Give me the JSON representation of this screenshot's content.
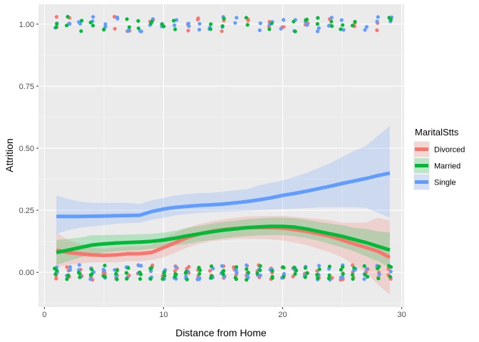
{
  "chart_data": {
    "type": "scatter",
    "xlabel": "Distance from Home",
    "ylabel": "Attrition",
    "xlim": [
      -0.5,
      30.2
    ],
    "ylim": [
      -0.14,
      1.08
    ],
    "x_ticks": [
      0,
      10,
      20,
      30
    ],
    "y_ticks": [
      0.0,
      0.25,
      0.5,
      0.75,
      1.0
    ],
    "y_tick_labels": [
      "0.00",
      "0.25",
      "0.50",
      "0.75",
      "1.00"
    ],
    "grid": true,
    "legend": {
      "title": "MaritalStts",
      "position": "right"
    },
    "series": [
      {
        "name": "Divorced",
        "color": "#F8766D",
        "smooth": {
          "x": [
            1,
            2,
            3,
            4,
            5,
            6,
            7,
            8,
            9,
            10,
            11,
            12,
            13,
            14,
            15,
            16,
            17,
            18,
            19,
            20,
            21,
            22,
            23,
            24,
            25,
            26,
            27,
            28,
            29
          ],
          "y": [
            0.09,
            0.08,
            0.075,
            0.07,
            0.068,
            0.07,
            0.075,
            0.075,
            0.08,
            0.1,
            0.12,
            0.14,
            0.155,
            0.165,
            0.172,
            0.177,
            0.18,
            0.181,
            0.18,
            0.178,
            0.172,
            0.165,
            0.155,
            0.145,
            0.13,
            0.115,
            0.1,
            0.085,
            0.06
          ],
          "lower": [
            0.02,
            0.03,
            0.035,
            0.04,
            0.04,
            0.04,
            0.045,
            0.045,
            0.05,
            0.06,
            0.08,
            0.1,
            0.115,
            0.125,
            0.13,
            0.135,
            0.135,
            0.135,
            0.133,
            0.128,
            0.12,
            0.11,
            0.095,
            0.08,
            0.06,
            0.03,
            0.0,
            -0.05,
            -0.09
          ],
          "upper": [
            0.16,
            0.13,
            0.115,
            0.1,
            0.095,
            0.1,
            0.105,
            0.105,
            0.11,
            0.14,
            0.16,
            0.18,
            0.195,
            0.205,
            0.214,
            0.219,
            0.225,
            0.227,
            0.227,
            0.228,
            0.224,
            0.22,
            0.215,
            0.21,
            0.2,
            0.2,
            0.2,
            0.22,
            0.21
          ]
        },
        "points_at_1": [
          1,
          2,
          6,
          7,
          9,
          12,
          13,
          15,
          17,
          19,
          20,
          22,
          24,
          26,
          28
        ],
        "points_at_0": [
          1,
          2,
          3,
          4,
          5,
          6,
          7,
          8,
          9,
          10,
          11,
          12,
          13,
          14,
          15,
          16,
          17,
          18,
          19,
          20,
          21,
          22,
          23,
          24,
          25,
          26,
          27,
          28,
          29
        ]
      },
      {
        "name": "Married",
        "color": "#00BA38",
        "smooth": {
          "x": [
            1,
            2,
            3,
            4,
            5,
            6,
            7,
            8,
            9,
            10,
            11,
            12,
            13,
            14,
            15,
            16,
            17,
            18,
            19,
            20,
            21,
            22,
            23,
            24,
            25,
            26,
            27,
            28,
            29
          ],
          "y": [
            0.08,
            0.09,
            0.1,
            0.11,
            0.115,
            0.118,
            0.12,
            0.122,
            0.125,
            0.13,
            0.138,
            0.147,
            0.155,
            0.163,
            0.17,
            0.175,
            0.18,
            0.183,
            0.185,
            0.185,
            0.182,
            0.175,
            0.165,
            0.155,
            0.145,
            0.132,
            0.12,
            0.105,
            0.09
          ],
          "lower": [
            0.03,
            0.045,
            0.06,
            0.07,
            0.08,
            0.085,
            0.088,
            0.09,
            0.095,
            0.1,
            0.108,
            0.115,
            0.123,
            0.13,
            0.137,
            0.142,
            0.146,
            0.149,
            0.15,
            0.15,
            0.146,
            0.138,
            0.127,
            0.114,
            0.1,
            0.085,
            0.065,
            0.045,
            0.02
          ],
          "upper": [
            0.13,
            0.135,
            0.14,
            0.15,
            0.15,
            0.151,
            0.152,
            0.154,
            0.155,
            0.16,
            0.168,
            0.179,
            0.187,
            0.196,
            0.203,
            0.208,
            0.214,
            0.217,
            0.22,
            0.22,
            0.218,
            0.212,
            0.203,
            0.196,
            0.19,
            0.179,
            0.175,
            0.165,
            0.16
          ]
        },
        "points_at_1": [
          1,
          2,
          3,
          4,
          5,
          7,
          8,
          9,
          10,
          11,
          14,
          15,
          17,
          19,
          21,
          22,
          23,
          24,
          25,
          26,
          29
        ],
        "points_at_0": [
          1,
          2,
          3,
          4,
          5,
          6,
          7,
          8,
          9,
          10,
          11,
          12,
          13,
          14,
          15,
          16,
          17,
          18,
          19,
          20,
          21,
          22,
          23,
          24,
          25,
          26,
          27,
          28,
          29
        ]
      },
      {
        "name": "Single",
        "color": "#619CFF",
        "smooth": {
          "x": [
            1,
            2,
            3,
            4,
            5,
            6,
            7,
            8,
            9,
            10,
            11,
            12,
            13,
            14,
            15,
            16,
            17,
            18,
            19,
            20,
            21,
            22,
            23,
            24,
            25,
            26,
            27,
            28,
            29
          ],
          "y": [
            0.225,
            0.225,
            0.225,
            0.226,
            0.227,
            0.228,
            0.229,
            0.23,
            0.245,
            0.255,
            0.262,
            0.266,
            0.27,
            0.272,
            0.275,
            0.28,
            0.285,
            0.292,
            0.3,
            0.31,
            0.318,
            0.327,
            0.337,
            0.347,
            0.358,
            0.368,
            0.378,
            0.39,
            0.4
          ],
          "lower": [
            0.155,
            0.17,
            0.18,
            0.185,
            0.19,
            0.195,
            0.198,
            0.2,
            0.212,
            0.22,
            0.23,
            0.235,
            0.24,
            0.242,
            0.244,
            0.246,
            0.248,
            0.25,
            0.252,
            0.255,
            0.257,
            0.259,
            0.261,
            0.262,
            0.262,
            0.262,
            0.26,
            0.24,
            0.22
          ],
          "upper": [
            0.31,
            0.295,
            0.285,
            0.28,
            0.28,
            0.28,
            0.28,
            0.275,
            0.29,
            0.3,
            0.31,
            0.315,
            0.32,
            0.32,
            0.325,
            0.33,
            0.335,
            0.35,
            0.36,
            0.37,
            0.385,
            0.4,
            0.42,
            0.44,
            0.465,
            0.49,
            0.51,
            0.55,
            0.59
          ]
        },
        "points_at_1": [
          1,
          2,
          3,
          4,
          5,
          6,
          7,
          8,
          9,
          10,
          11,
          12,
          13,
          14,
          15,
          16,
          18,
          19,
          20,
          21,
          22,
          23,
          24,
          25,
          27,
          28,
          29
        ],
        "points_at_0": [
          1,
          2,
          3,
          4,
          5,
          6,
          7,
          8,
          9,
          10,
          11,
          12,
          13,
          14,
          15,
          16,
          17,
          18,
          19,
          20,
          21,
          22,
          23,
          24,
          25,
          26,
          27,
          28,
          29
        ]
      }
    ]
  }
}
